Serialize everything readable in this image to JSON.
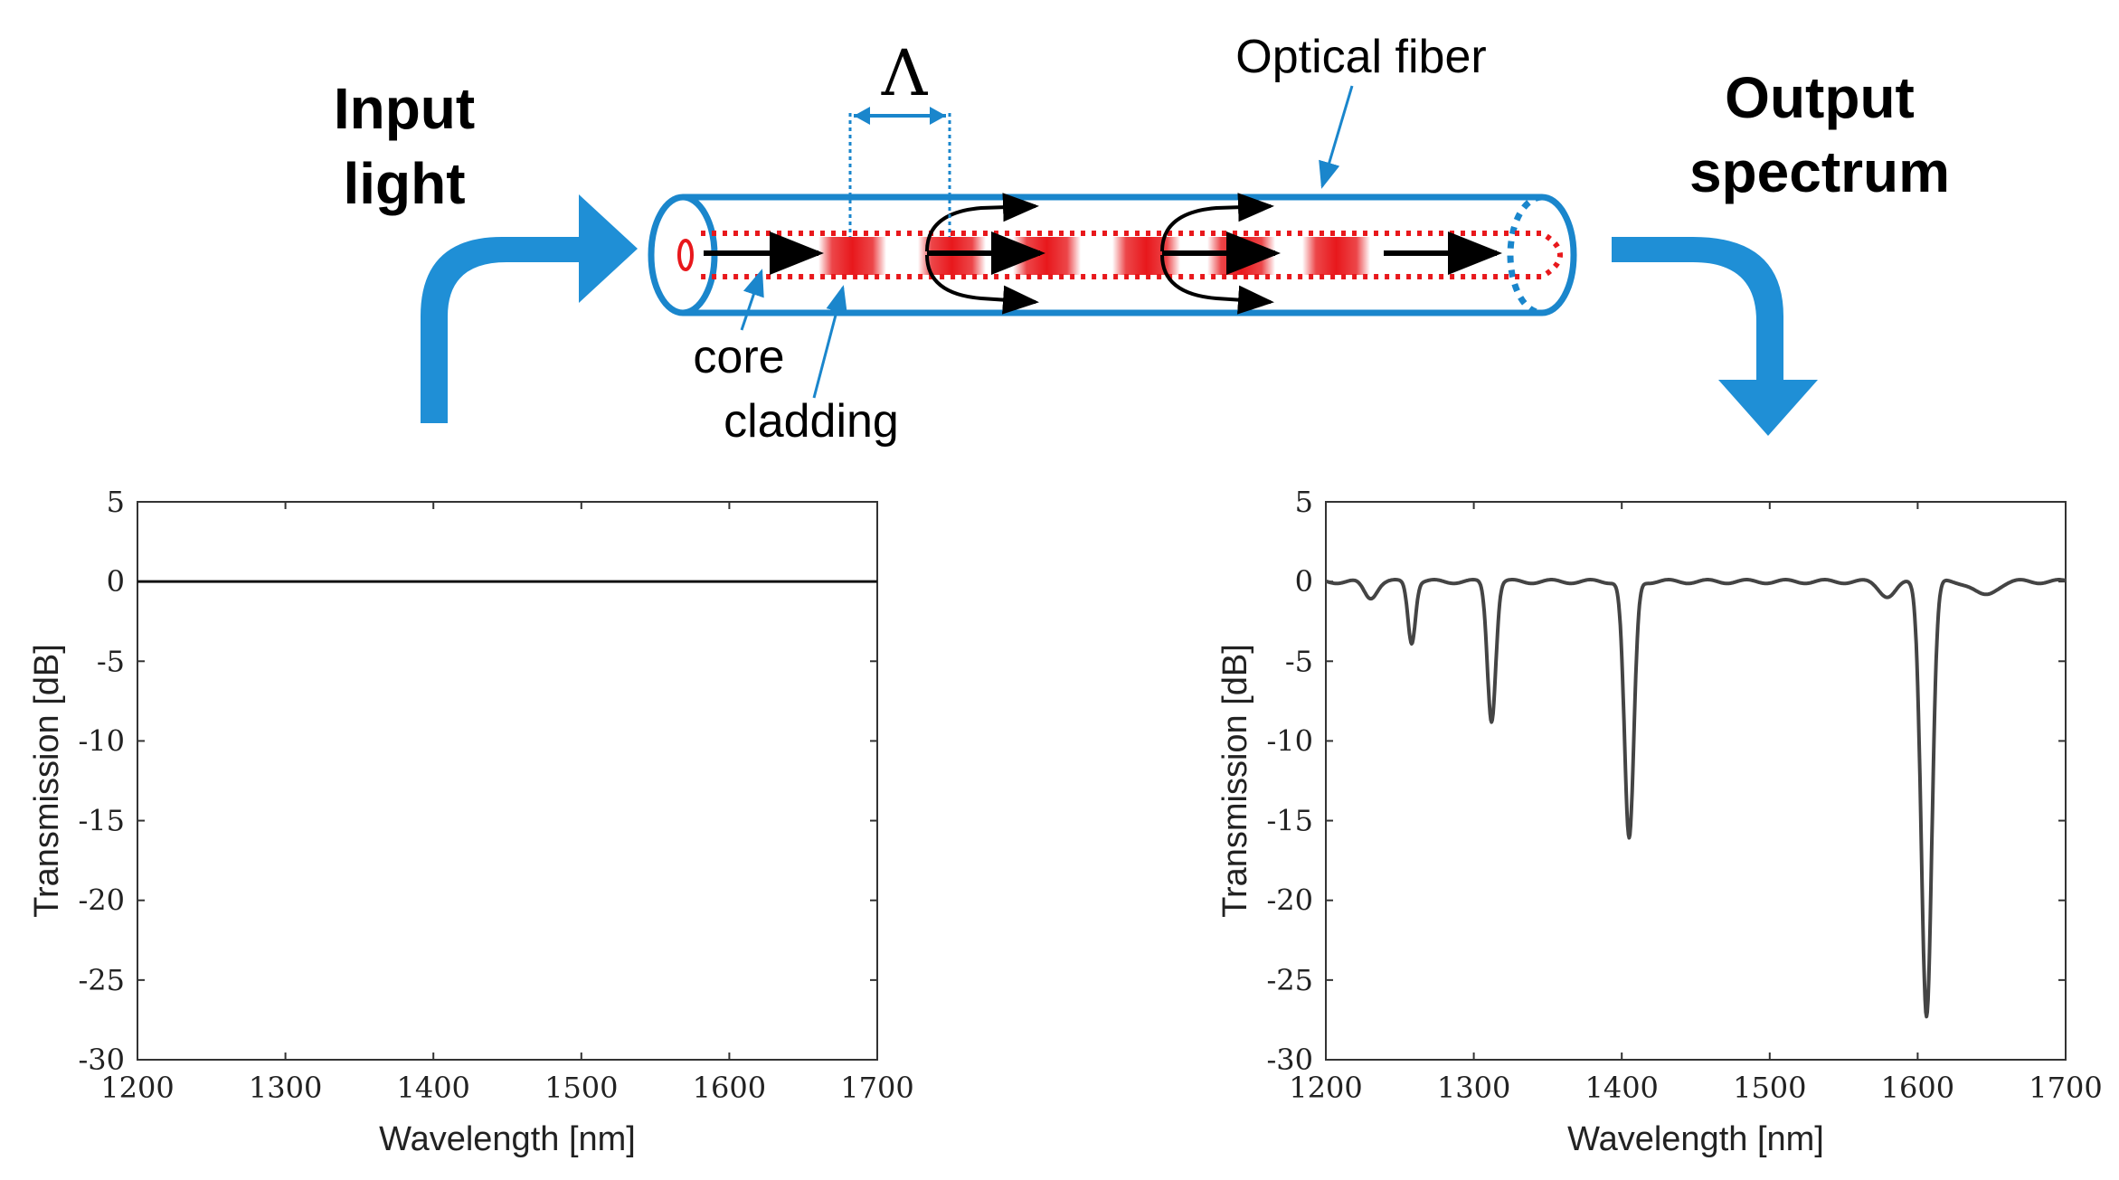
{
  "diagram": {
    "input_label_line1": "Input",
    "input_label_line2": "light",
    "output_label_line1": "Output",
    "output_label_line2": "spectrum",
    "fiber_label": "Optical fiber",
    "period_symbol": "Λ",
    "core_label": "core",
    "cladding_label": "cladding",
    "colors": {
      "fiber_blue": "#1a86cc",
      "arrow_blue": "#1f8fd6",
      "core_red": "#e8181c",
      "trace_dark": "#444444"
    }
  },
  "chart_data": [
    {
      "type": "line",
      "name": "input-spectrum",
      "title": "",
      "xlabel": "Wavelength [nm]",
      "ylabel": "Transmission [dB]",
      "xlim": [
        1200,
        1700
      ],
      "ylim": [
        -30,
        5
      ],
      "xticks": [
        1200,
        1300,
        1400,
        1500,
        1600,
        1700
      ],
      "yticks": [
        5,
        0,
        -5,
        -10,
        -15,
        -20,
        -25,
        -30
      ],
      "series": [
        {
          "name": "input",
          "x": [
            1200,
            1700
          ],
          "values": [
            0,
            0
          ]
        }
      ]
    },
    {
      "type": "line",
      "name": "output-spectrum",
      "title": "",
      "xlabel": "Wavelength [nm]",
      "ylabel": "Transmission [dB]",
      "xlim": [
        1200,
        1700
      ],
      "ylim": [
        -30,
        5
      ],
      "xticks": [
        1200,
        1300,
        1400,
        1500,
        1600,
        1700
      ],
      "yticks": [
        5,
        0,
        -5,
        -10,
        -15,
        -20,
        -25,
        -30
      ],
      "baseline": 0,
      "dips": [
        {
          "center": 1230,
          "depth": -1.0,
          "width": 6
        },
        {
          "center": 1258,
          "depth": -3.8,
          "width": 3.5
        },
        {
          "center": 1312,
          "depth": -8.7,
          "width": 4
        },
        {
          "center": 1405,
          "depth": -16.2,
          "width": 4.5
        },
        {
          "center": 1580,
          "depth": -0.9,
          "width": 8
        },
        {
          "center": 1606,
          "depth": -27.2,
          "width": 5
        },
        {
          "center": 1645,
          "depth": -0.9,
          "width": 10
        }
      ]
    }
  ]
}
